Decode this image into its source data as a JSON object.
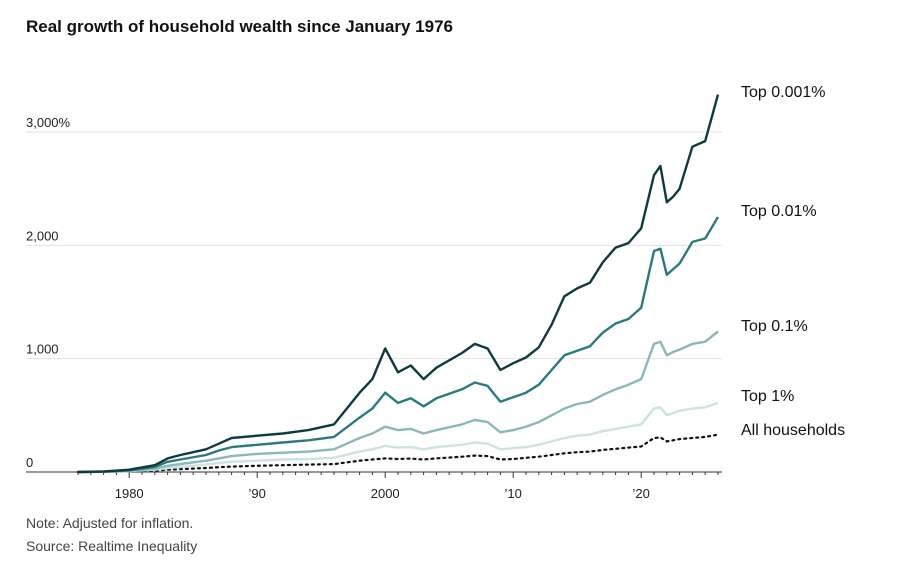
{
  "chart_data": {
    "type": "line",
    "title": "Real growth of household wealth since January 1976",
    "xlabel": "",
    "ylabel": "",
    "xlim": [
      1976,
      2026
    ],
    "ylim": [
      0,
      3300
    ],
    "grid": true,
    "legend": "direct labels at right",
    "y_ticks": [
      {
        "value": 0,
        "label": "0"
      },
      {
        "value": 1000,
        "label": "1,000"
      },
      {
        "value": 2000,
        "label": "2,000"
      },
      {
        "value": 3000,
        "label": "3,000%"
      }
    ],
    "x_ticks": [
      {
        "value": 1980,
        "label": "1980"
      },
      {
        "value": 1990,
        "label": "’90"
      },
      {
        "value": 2000,
        "label": "2000"
      },
      {
        "value": 2010,
        "label": "’10"
      },
      {
        "value": 2020,
        "label": "’20"
      }
    ],
    "x": [
      1976,
      1978,
      1980,
      1982,
      1983,
      1984,
      1986,
      1987,
      1988,
      1990,
      1992,
      1994,
      1996,
      1998,
      1999,
      2000,
      2001,
      2002,
      2003,
      2004,
      2006,
      2007,
      2008,
      2009,
      2010,
      2011,
      2012,
      2013,
      2014,
      2015,
      2016,
      2017,
      2018,
      2019,
      2020,
      2021,
      2021.5,
      2022,
      2022.5,
      2023,
      2024,
      2025,
      2026
    ],
    "series": [
      {
        "name": "Top 0.001%",
        "color": "#0d3b40",
        "dotted": false,
        "values": [
          0,
          5,
          20,
          60,
          120,
          150,
          200,
          250,
          300,
          320,
          340,
          370,
          420,
          700,
          820,
          1090,
          880,
          940,
          820,
          920,
          1050,
          1130,
          1090,
          900,
          960,
          1010,
          1100,
          1300,
          1550,
          1620,
          1670,
          1850,
          1980,
          2020,
          2150,
          2620,
          2700,
          2380,
          2430,
          2500,
          2870,
          2920,
          3330
        ]
      },
      {
        "name": "Top 0.01%",
        "color": "#2b7a80",
        "dotted": false,
        "values": [
          0,
          3,
          15,
          45,
          90,
          110,
          150,
          190,
          220,
          240,
          260,
          280,
          310,
          480,
          560,
          700,
          610,
          650,
          580,
          650,
          730,
          790,
          760,
          620,
          660,
          700,
          770,
          900,
          1030,
          1070,
          1110,
          1230,
          1310,
          1350,
          1450,
          1950,
          1970,
          1740,
          1790,
          1840,
          2030,
          2060,
          2250
        ]
      },
      {
        "name": "Top 0.1%",
        "color": "#8ab7ba",
        "dotted": false,
        "values": [
          0,
          2,
          10,
          30,
          55,
          70,
          100,
          120,
          140,
          160,
          170,
          180,
          200,
          300,
          340,
          400,
          370,
          380,
          340,
          370,
          420,
          460,
          440,
          350,
          370,
          400,
          440,
          500,
          560,
          600,
          620,
          680,
          730,
          770,
          820,
          1130,
          1150,
          1030,
          1060,
          1080,
          1130,
          1150,
          1240
        ]
      },
      {
        "name": "Top 1%",
        "color": "#cde2e2",
        "dotted": false,
        "values": [
          0,
          2,
          8,
          20,
          35,
          45,
          65,
          80,
          90,
          100,
          110,
          115,
          125,
          180,
          200,
          230,
          215,
          220,
          200,
          220,
          240,
          260,
          250,
          200,
          210,
          220,
          240,
          270,
          300,
          320,
          330,
          360,
          380,
          400,
          420,
          560,
          570,
          500,
          520,
          540,
          560,
          570,
          610
        ]
      },
      {
        "name": "All households",
        "color": "#111111",
        "dotted": true,
        "values": [
          0,
          1,
          5,
          12,
          20,
          25,
          35,
          42,
          48,
          55,
          60,
          65,
          70,
          100,
          110,
          120,
          115,
          118,
          110,
          120,
          135,
          145,
          140,
          110,
          115,
          125,
          135,
          150,
          165,
          175,
          180,
          195,
          205,
          215,
          225,
          300,
          305,
          270,
          280,
          290,
          300,
          310,
          330
        ]
      }
    ]
  },
  "footer": {
    "note": "Note: Adjusted for inflation.",
    "source": "Source: Realtime Inequality"
  }
}
